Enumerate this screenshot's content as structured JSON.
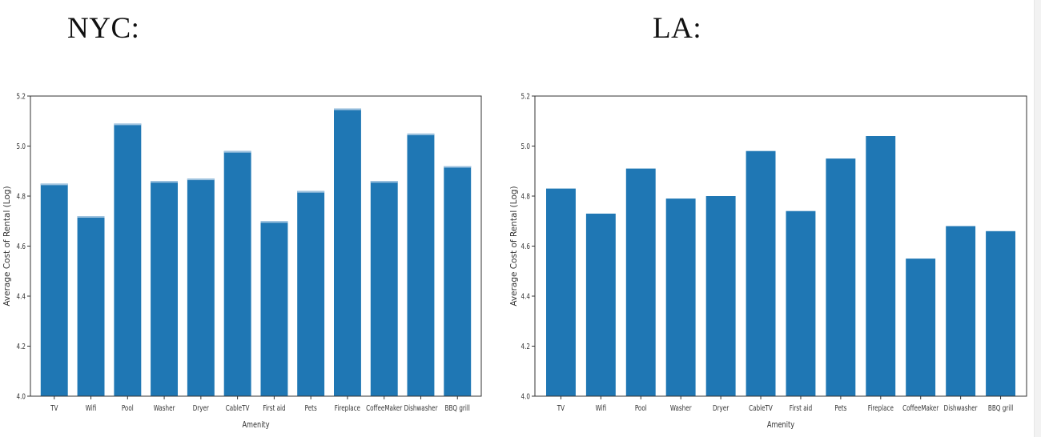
{
  "headings": {
    "nyc": "NYC:",
    "la": "LA:"
  },
  "colors": {
    "bar": "#1f77b4",
    "axis": "#333333"
  },
  "chart_data": [
    {
      "type": "bar",
      "title": "NYC:",
      "xlabel": "Amenity",
      "ylabel": "Average Cost of Rental (Log)",
      "ylim": [
        4.0,
        5.2
      ],
      "yticks": [
        4.0,
        4.2,
        4.4,
        4.6,
        4.8,
        5.0,
        5.2
      ],
      "ytick_labels": [
        "4.0",
        "4.2",
        "4.4",
        "4.6",
        "4.8",
        "5.0",
        "5.2"
      ],
      "categories": [
        "TV",
        "Wifi",
        "Pool",
        "Washer",
        "Dryer",
        "CableTV",
        "First aid",
        "Pets",
        "Fireplace",
        "CoffeeMaker",
        "Dishwasher",
        "BBQ grill"
      ],
      "values": [
        4.85,
        4.72,
        5.09,
        4.86,
        4.87,
        4.98,
        4.7,
        4.82,
        5.15,
        4.86,
        5.05,
        4.92
      ]
    },
    {
      "type": "bar",
      "title": "LA:",
      "xlabel": "Amenity",
      "ylabel": "Average Cost of Rental (Log)",
      "ylim": [
        4.0,
        5.2
      ],
      "yticks": [
        4.0,
        4.2,
        4.4,
        4.6,
        4.8,
        5.0,
        5.2
      ],
      "ytick_labels": [
        "4.0",
        "4.2",
        "4.4",
        "4.6",
        "4.8",
        "5.0",
        "5.2"
      ],
      "categories": [
        "TV",
        "Wifi",
        "Pool",
        "Washer",
        "Dryer",
        "CableTV",
        "First aid",
        "Pets",
        "Fireplace",
        "CoffeeMaker",
        "Dishwasher",
        "BBQ grill"
      ],
      "values": [
        4.83,
        4.73,
        4.91,
        4.79,
        4.8,
        4.98,
        4.74,
        4.95,
        5.04,
        4.55,
        4.68,
        4.66
      ]
    }
  ]
}
